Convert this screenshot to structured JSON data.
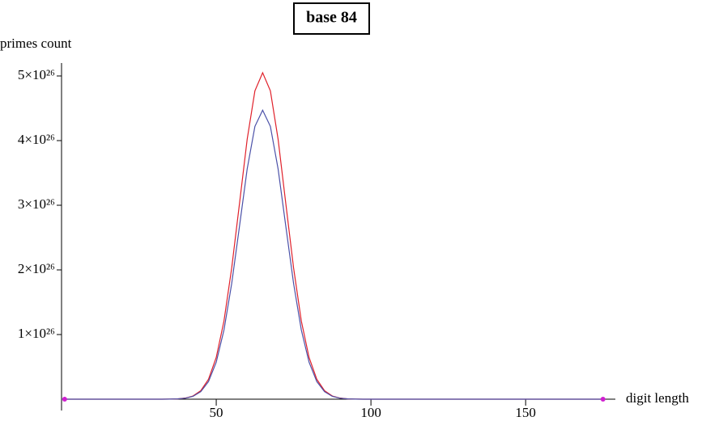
{
  "chart_data": {
    "type": "line",
    "title": "base 84",
    "ylabel": "primes count",
    "xlabel": "digit length",
    "x": [
      0,
      30,
      32.5,
      35,
      37.5,
      40,
      42.5,
      45,
      47.5,
      50,
      52.5,
      55,
      57.5,
      60,
      62.5,
      65,
      67.5,
      70,
      72.5,
      75,
      77.5,
      80,
      82.5,
      85,
      87.5,
      90,
      92.5,
      95,
      97.5,
      100,
      175
    ],
    "series": [
      {
        "name": "red",
        "color": "#e0202a",
        "values": [
          0,
          1e+22,
          3e+22,
          1.4e+23,
          5.1e+23,
          1.69e+24,
          4.98e+24,
          1.31e+25,
          3.08e+25,
          6.46e+25,
          1.21e+26,
          2.03e+26,
          3.02e+26,
          4.02e+26,
          4.77e+26,
          5.05e+26,
          4.77e+26,
          4.02e+26,
          3.02e+26,
          2.03e+26,
          1.21e+26,
          6.46e+25,
          3.08e+25,
          1.31e+25,
          4.98e+24,
          1.69e+24,
          5.1e+23,
          1.4e+23,
          3e+22,
          1e+22,
          0
        ]
      },
      {
        "name": "blue",
        "color": "#4a50a8",
        "values": [
          0,
          1e+22,
          3e+22,
          1.2e+23,
          4.5e+23,
          1.49e+24,
          4.41e+24,
          1.16e+25,
          2.73e+25,
          5.72e+25,
          1.07e+26,
          1.79e+26,
          2.67e+26,
          3.56e+26,
          4.22e+26,
          4.47e+26,
          4.22e+26,
          3.56e+26,
          2.67e+26,
          1.79e+26,
          1.07e+26,
          5.72e+25,
          2.73e+25,
          1.16e+25,
          4.41e+24,
          1.49e+24,
          4.5e+23,
          1.2e+23,
          3e+22,
          1e+22,
          0
        ]
      }
    ],
    "points": {
      "color": "#d020d0",
      "x": [
        1,
        175
      ],
      "values": [
        0,
        0
      ]
    },
    "xlim": [
      0,
      179
    ],
    "ylim": [
      0,
      5.2e+26
    ],
    "xticks": [
      50,
      100,
      150
    ],
    "yticks": [
      {
        "value": 1e+26,
        "label": "1×10²⁶"
      },
      {
        "value": 2e+26,
        "label": "2×10²⁶"
      },
      {
        "value": 3e+26,
        "label": "3×10²⁶"
      },
      {
        "value": 4e+26,
        "label": "4×10²⁶"
      },
      {
        "value": 5e+26,
        "label": "5×10²⁶"
      }
    ]
  }
}
